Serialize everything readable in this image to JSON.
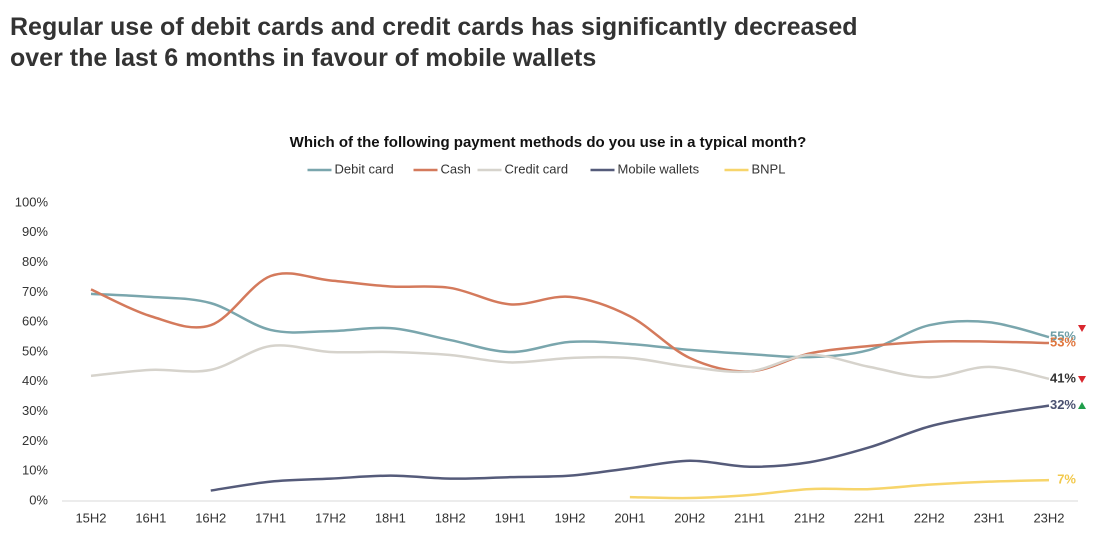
{
  "chart_data": {
    "type": "line",
    "title": "Regular use of debit cards and credit cards has significantly decreased over the last 6 months in favour of mobile wallets",
    "subtitle": "Which of the following payment methods do you use in a typical month?",
    "categories": [
      "15H2",
      "16H1",
      "16H2",
      "17H1",
      "17H2",
      "18H1",
      "18H2",
      "19H1",
      "19H2",
      "20H1",
      "20H2",
      "21H1",
      "21H2",
      "22H1",
      "22H2",
      "23H1",
      "23H2"
    ],
    "series": [
      {
        "name": "Debit card",
        "color": "#7aa6ad",
        "label_color": "#6e9ea6",
        "values": [
          69.5,
          68.5,
          66.4,
          57.4,
          57,
          58,
          54,
          50,
          53.4,
          52.7,
          50.7,
          49.3,
          48.3,
          50.7,
          59,
          60,
          55
        ],
        "value_labels": [
          null,
          null,
          null,
          null,
          null,
          null,
          null,
          null,
          null,
          null,
          null,
          null,
          null,
          null,
          null,
          null,
          "55%"
        ]
      },
      {
        "name": "Cash",
        "color": "#d47a5c",
        "label_color": "#e0773f",
        "values": [
          71,
          62,
          59,
          75.5,
          74,
          72,
          71.5,
          66,
          68.5,
          62,
          48,
          43.5,
          49.5,
          52,
          53.5,
          53.5,
          53
        ],
        "value_labels": [
          null,
          null,
          null,
          null,
          null,
          null,
          null,
          null,
          null,
          null,
          null,
          null,
          null,
          null,
          null,
          null,
          "53%"
        ]
      },
      {
        "name": "Credit card",
        "color": "#d6d3cc",
        "label_color": "#333333",
        "values": [
          42,
          44,
          44,
          52,
          50,
          50,
          49,
          46.5,
          48,
          48,
          45,
          43.5,
          49,
          45,
          41.5,
          45,
          41
        ],
        "value_labels": [
          null,
          null,
          null,
          null,
          null,
          null,
          null,
          null,
          null,
          null,
          null,
          null,
          null,
          null,
          null,
          null,
          "41%"
        ]
      },
      {
        "name": "Mobile wallets",
        "color": "#555b7a",
        "label_color": "#4a5070",
        "values": [
          null,
          null,
          3.5,
          6.5,
          7.5,
          8.5,
          7.5,
          8,
          8.5,
          11,
          13.5,
          11.5,
          13,
          18,
          25,
          29,
          32
        ],
        "value_labels": [
          null,
          null,
          null,
          null,
          null,
          null,
          null,
          null,
          null,
          null,
          null,
          null,
          null,
          null,
          null,
          null,
          "32%"
        ]
      },
      {
        "name": "BNPL",
        "color": "#f7d56b",
        "label_color": "#f2c94c",
        "values": [
          null,
          null,
          null,
          null,
          null,
          null,
          null,
          null,
          null,
          1.3,
          1,
          2,
          4,
          4,
          5.5,
          6.5,
          7
        ],
        "value_labels": [
          null,
          null,
          null,
          null,
          null,
          null,
          null,
          null,
          null,
          null,
          null,
          null,
          null,
          null,
          null,
          null,
          "7%"
        ]
      }
    ],
    "ylim": [
      0,
      100
    ],
    "yticks": [
      {
        "value": 0,
        "label": "0%"
      },
      {
        "value": 10,
        "label": "10%"
      },
      {
        "value": 20,
        "label": "20%"
      },
      {
        "value": 30,
        "label": "30%"
      },
      {
        "value": 40,
        "label": "40%"
      },
      {
        "value": 50,
        "label": "50%"
      },
      {
        "value": 60,
        "label": "60%"
      },
      {
        "value": 70,
        "label": "70%"
      },
      {
        "value": 80,
        "label": "80%"
      },
      {
        "value": 90,
        "label": "90%"
      },
      {
        "value": 100,
        "label": "100%"
      }
    ],
    "grid": false,
    "legend": "top",
    "smooth": true
  }
}
